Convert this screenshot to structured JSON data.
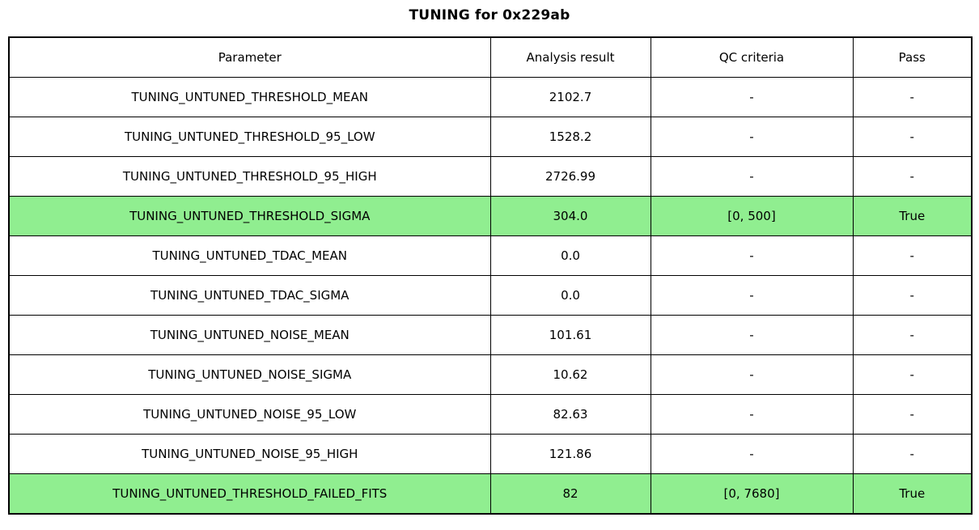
{
  "title": "TUNING for 0x229ab",
  "table": {
    "columns": [
      "Parameter",
      "Analysis result",
      "QC criteria",
      "Pass"
    ],
    "rows": [
      {
        "parameter": "TUNING_UNTUNED_THRESHOLD_MEAN",
        "analysis_result": "2102.7",
        "qc_criteria": "-",
        "pass": "-",
        "highlight": false
      },
      {
        "parameter": "TUNING_UNTUNED_THRESHOLD_95_LOW",
        "analysis_result": "1528.2",
        "qc_criteria": "-",
        "pass": "-",
        "highlight": false
      },
      {
        "parameter": "TUNING_UNTUNED_THRESHOLD_95_HIGH",
        "analysis_result": "2726.99",
        "qc_criteria": "-",
        "pass": "-",
        "highlight": false
      },
      {
        "parameter": "TUNING_UNTUNED_THRESHOLD_SIGMA",
        "analysis_result": "304.0",
        "qc_criteria": "[0, 500]",
        "pass": "True",
        "highlight": true
      },
      {
        "parameter": "TUNING_UNTUNED_TDAC_MEAN",
        "analysis_result": "0.0",
        "qc_criteria": "-",
        "pass": "-",
        "highlight": false
      },
      {
        "parameter": "TUNING_UNTUNED_TDAC_SIGMA",
        "analysis_result": "0.0",
        "qc_criteria": "-",
        "pass": "-",
        "highlight": false
      },
      {
        "parameter": "TUNING_UNTUNED_NOISE_MEAN",
        "analysis_result": "101.61",
        "qc_criteria": "-",
        "pass": "-",
        "highlight": false
      },
      {
        "parameter": "TUNING_UNTUNED_NOISE_SIGMA",
        "analysis_result": "10.62",
        "qc_criteria": "-",
        "pass": "-",
        "highlight": false
      },
      {
        "parameter": "TUNING_UNTUNED_NOISE_95_LOW",
        "analysis_result": "82.63",
        "qc_criteria": "-",
        "pass": "-",
        "highlight": false
      },
      {
        "parameter": "TUNING_UNTUNED_NOISE_95_HIGH",
        "analysis_result": "121.86",
        "qc_criteria": "-",
        "pass": "-",
        "highlight": false
      },
      {
        "parameter": "TUNING_UNTUNED_THRESHOLD_FAILED_FITS",
        "analysis_result": "82",
        "qc_criteria": "[0, 7680]",
        "pass": "True",
        "highlight": true
      }
    ]
  },
  "colors": {
    "highlight_green": "#90EE90",
    "border": "#000000",
    "background": "#ffffff"
  },
  "chart_data": {
    "type": "table",
    "title": "TUNING for 0x229ab",
    "columns": [
      "Parameter",
      "Analysis result",
      "QC criteria",
      "Pass"
    ],
    "rows": [
      [
        "TUNING_UNTUNED_THRESHOLD_MEAN",
        "2102.7",
        "-",
        "-"
      ],
      [
        "TUNING_UNTUNED_THRESHOLD_95_LOW",
        "1528.2",
        "-",
        "-"
      ],
      [
        "TUNING_UNTUNED_THRESHOLD_95_HIGH",
        "2726.99",
        "-",
        "-"
      ],
      [
        "TUNING_UNTUNED_THRESHOLD_SIGMA",
        "304.0",
        "[0, 500]",
        "True"
      ],
      [
        "TUNING_UNTUNED_TDAC_MEAN",
        "0.0",
        "-",
        "-"
      ],
      [
        "TUNING_UNTUNED_TDAC_SIGMA",
        "0.0",
        "-",
        "-"
      ],
      [
        "TUNING_UNTUNED_NOISE_MEAN",
        "101.61",
        "-",
        "-"
      ],
      [
        "TUNING_UNTUNED_NOISE_SIGMA",
        "10.62",
        "-",
        "-"
      ],
      [
        "TUNING_UNTUNED_NOISE_95_LOW",
        "82.63",
        "-",
        "-"
      ],
      [
        "TUNING_UNTUNED_NOISE_95_HIGH",
        "121.86",
        "-",
        "-"
      ],
      [
        "TUNING_UNTUNED_THRESHOLD_FAILED_FITS",
        "82",
        "[0, 7680]",
        "True"
      ]
    ],
    "highlighted_row_indices": [
      3,
      10
    ],
    "layout_hints": {
      "grid": true,
      "text_align": "center",
      "highlight_color": "#90EE90"
    }
  }
}
